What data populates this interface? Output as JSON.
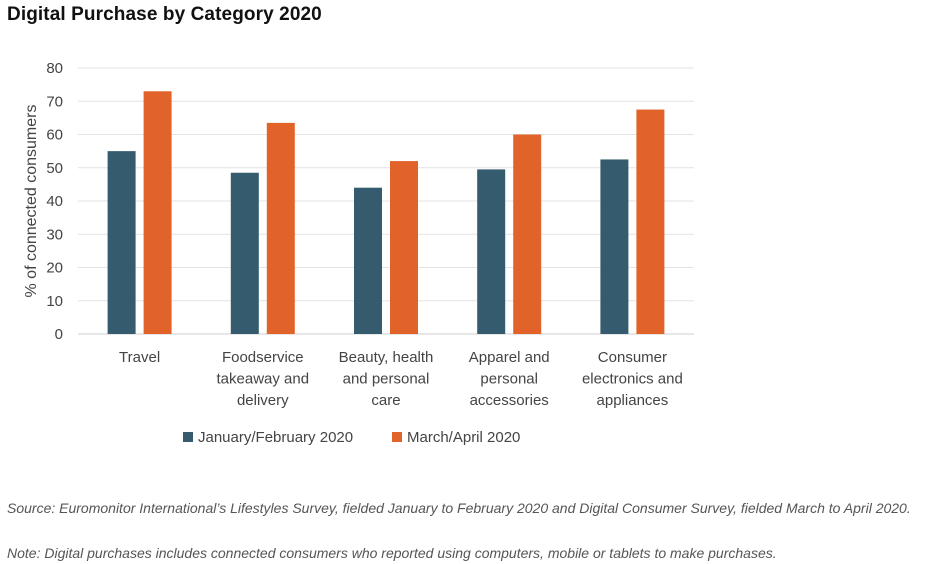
{
  "title": "Digital Purchase by Category 2020",
  "chart_data": {
    "type": "bar",
    "ylabel": "% of connected consumers",
    "ylim": [
      0,
      80
    ],
    "yticks": [
      0,
      10,
      20,
      30,
      40,
      50,
      60,
      70,
      80
    ],
    "grid": true,
    "legend_position": "bottom",
    "categories": [
      [
        "Travel"
      ],
      [
        "Foodservice",
        "takeaway and",
        "delivery"
      ],
      [
        "Beauty, health",
        "and personal",
        "care"
      ],
      [
        "Apparel and",
        "personal",
        "accessories"
      ],
      [
        "Consumer",
        "electronics and",
        "appliances"
      ]
    ],
    "series": [
      {
        "name": "January/February 2020",
        "color": "#355c6e",
        "values": [
          55,
          48.5,
          44,
          49.5,
          52.5
        ]
      },
      {
        "name": "March/April 2020",
        "color": "#e2632a",
        "values": [
          73,
          63.5,
          52,
          60,
          67.5
        ]
      }
    ]
  },
  "source": "Source:  Euromonitor International’s Lifestyles Survey, fielded January to February 2020 and Digital Consumer Survey, fielded March to April 2020.",
  "note": "Note: Digital purchases includes connected consumers who reported using computers, mobile or tablets to make purchases."
}
